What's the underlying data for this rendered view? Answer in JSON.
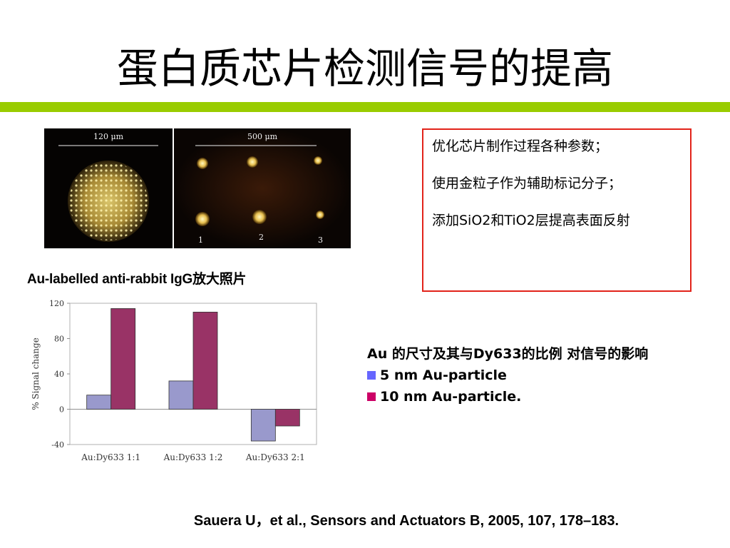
{
  "slide": {
    "title": "蛋白质芯片检测信号的提高",
    "accent_color": "#99cc00"
  },
  "images": {
    "left_scale_label": "120 μm",
    "right_scale_label": "500 μm",
    "spot_labels": [
      "1",
      "2",
      "3"
    ],
    "caption": "Au-labelled anti-rabbit IgG放大照片"
  },
  "notes_box": {
    "border_color": "#e2231a",
    "items": [
      "优化芯片制作过程各种参数；",
      "使用金粒子作为辅助标记分子；",
      "添加SiO2和TiO2层提高表面反射"
    ]
  },
  "legend": {
    "heading": "Au 的尺寸及其与Dy633的比例 对信号的影响",
    "items": [
      {
        "label": "5 nm Au-particle",
        "color": "#6666ff"
      },
      {
        "label": "10 nm Au-particle.",
        "color": "#cc0066"
      }
    ]
  },
  "chart_data": {
    "type": "bar",
    "categories": [
      "Au:Dy633   1:1",
      "Au:Dy633   1:2",
      "Au:Dy633   2:1"
    ],
    "series": [
      {
        "values": [
          16,
          32,
          -36
        ],
        "color": "#9999cc"
      },
      {
        "values": [
          114,
          110,
          -19
        ],
        "color": "#993366"
      }
    ],
    "ylabel": "% Signal change",
    "ylim": [
      -40,
      120
    ],
    "yticks": [
      -40,
      0,
      40,
      80,
      120
    ],
    "grid": false,
    "legend": "none"
  },
  "citation": "Sauera  U，et al., Sensors and Actuators B, 2005, 107, 178–183."
}
